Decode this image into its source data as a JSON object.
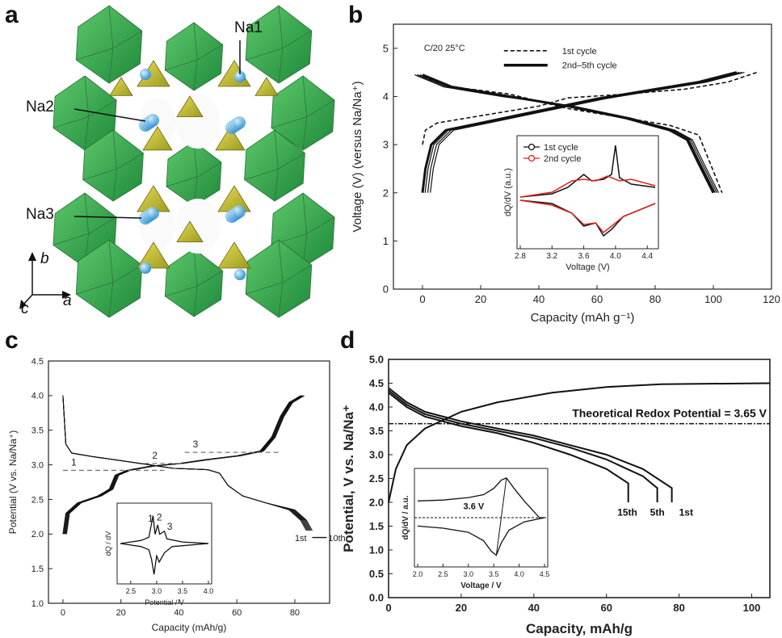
{
  "panels": {
    "a": {
      "label": "a",
      "structure_labels": [
        "Na1",
        "Na2",
        "Na3"
      ],
      "axes_labels": {
        "b": "b",
        "c": "c",
        "a": "a"
      }
    },
    "b": {
      "label": "b"
    },
    "c": {
      "label": "c"
    },
    "d": {
      "label": "d"
    }
  },
  "chart_data": [
    {
      "id": "b",
      "type": "line",
      "xlabel": "Capacity (mAh g⁻¹)",
      "ylabel": "Voltage (V) (versus Na/Na⁺)",
      "xlim": [
        -10,
        120
      ],
      "ylim": [
        0,
        5.5
      ],
      "xticks": [
        0,
        20,
        40,
        60,
        80,
        100,
        120
      ],
      "yticks": [
        0,
        1,
        2,
        3,
        4,
        5
      ],
      "annotation": "C/20 25°C",
      "legend": [
        {
          "name": "1st cycle",
          "style": "dashed"
        },
        {
          "name": "2nd–5th cycle",
          "style": "solid-thick"
        }
      ],
      "series": [
        {
          "name": "1st cycle",
          "charge": [
            [
              0,
              3.0
            ],
            [
              1,
              3.3
            ],
            [
              5,
              3.45
            ],
            [
              20,
              3.6
            ],
            [
              40,
              3.8
            ],
            [
              50,
              3.97
            ],
            [
              70,
              4.05
            ],
            [
              90,
              4.15
            ],
            [
              105,
              4.3
            ],
            [
              115,
              4.5
            ]
          ],
          "discharge": [
            [
              0,
              4.4
            ],
            [
              10,
              4.2
            ],
            [
              30,
              4.05
            ],
            [
              50,
              3.75
            ],
            [
              70,
              3.55
            ],
            [
              85,
              3.4
            ],
            [
              95,
              3.2
            ],
            [
              99,
              2.6
            ],
            [
              103,
              2.0
            ]
          ]
        },
        {
          "name": "2nd–5th cycle",
          "charge": [
            [
              0,
              2.0
            ],
            [
              1,
              2.5
            ],
            [
              3,
              3.0
            ],
            [
              8,
              3.3
            ],
            [
              20,
              3.45
            ],
            [
              40,
              3.7
            ],
            [
              60,
              3.95
            ],
            [
              80,
              4.15
            ],
            [
              95,
              4.3
            ],
            [
              108,
              4.5
            ]
          ],
          "discharge": [
            [
              0,
              4.45
            ],
            [
              10,
              4.2
            ],
            [
              30,
              4.0
            ],
            [
              50,
              3.8
            ],
            [
              70,
              3.55
            ],
            [
              85,
              3.3
            ],
            [
              91,
              3.1
            ],
            [
              95,
              2.6
            ],
            [
              100,
              2.0
            ]
          ]
        }
      ],
      "inset": {
        "type": "line",
        "xlabel": "Voltage (V)",
        "ylabel": "dQ/dV (a.u.)",
        "xlim": [
          2.8,
          4.5
        ],
        "xticks": [
          2.8,
          3.2,
          3.6,
          4.0,
          4.4
        ],
        "legend": [
          "1st cycle",
          "2nd cycle"
        ],
        "series": [
          {
            "name": "1st cycle",
            "color": "#111111",
            "upper": [
              [
                2.8,
                0.0
              ],
              [
                3.2,
                0.1
              ],
              [
                3.4,
                0.3
              ],
              [
                3.6,
                0.7
              ],
              [
                3.7,
                0.5
              ],
              [
                3.85,
                0.55
              ],
              [
                3.95,
                0.7
              ],
              [
                4.0,
                1.6
              ],
              [
                4.05,
                0.6
              ],
              [
                4.2,
                0.4
              ],
              [
                4.5,
                0.3
              ]
            ],
            "lower": [
              [
                2.8,
                -0.1
              ],
              [
                3.2,
                -0.2
              ],
              [
                3.45,
                -0.5
              ],
              [
                3.6,
                -0.9
              ],
              [
                3.75,
                -0.8
              ],
              [
                3.85,
                -1.2
              ],
              [
                3.95,
                -1.0
              ],
              [
                4.1,
                -0.6
              ],
              [
                4.5,
                -0.2
              ]
            ]
          },
          {
            "name": "2nd cycle",
            "color": "#e02020",
            "upper": [
              [
                2.8,
                0.0
              ],
              [
                3.2,
                0.15
              ],
              [
                3.45,
                0.5
              ],
              [
                3.6,
                0.55
              ],
              [
                3.75,
                0.5
              ],
              [
                3.9,
                0.65
              ],
              [
                4.05,
                0.5
              ],
              [
                4.2,
                0.55
              ],
              [
                4.5,
                0.35
              ]
            ],
            "lower": [
              [
                2.8,
                -0.1
              ],
              [
                3.2,
                -0.25
              ],
              [
                3.45,
                -0.5
              ],
              [
                3.6,
                -0.85
              ],
              [
                3.75,
                -0.8
              ],
              [
                3.85,
                -1.1
              ],
              [
                3.95,
                -0.9
              ],
              [
                4.1,
                -0.6
              ],
              [
                4.5,
                -0.2
              ]
            ]
          }
        ]
      }
    },
    {
      "id": "c",
      "type": "line",
      "xlabel": "Capacity (mAh/g)",
      "ylabel": "Potential (V vs. Na/Na⁺)",
      "xlim": [
        -5,
        92
      ],
      "ylim": [
        1.0,
        4.5
      ],
      "xticks": [
        0,
        20,
        40,
        60,
        80
      ],
      "yticks": [
        1.0,
        1.5,
        2.0,
        2.5,
        3.0,
        3.5,
        4.0,
        4.5
      ],
      "annotations": [
        "1",
        "2",
        "3",
        "1st",
        "10th"
      ],
      "series": [
        {
          "name": "charge",
          "points": [
            [
              0,
              2.0
            ],
            [
              1,
              2.3
            ],
            [
              5,
              2.45
            ],
            [
              12,
              2.55
            ],
            [
              16,
              2.65
            ],
            [
              18,
              2.85
            ],
            [
              22,
              2.92
            ],
            [
              30,
              2.98
            ],
            [
              40,
              3.02
            ],
            [
              50,
              3.08
            ],
            [
              60,
              3.13
            ],
            [
              68,
              3.2
            ],
            [
              72,
              3.4
            ],
            [
              75,
              3.7
            ],
            [
              78,
              3.9
            ],
            [
              82,
              4.0
            ]
          ]
        },
        {
          "name": "discharge",
          "points": [
            [
              0,
              4.0
            ],
            [
              1,
              3.3
            ],
            [
              3,
              3.17
            ],
            [
              10,
              3.12
            ],
            [
              20,
              3.06
            ],
            [
              30,
              3.0
            ],
            [
              38,
              2.95
            ],
            [
              50,
              2.93
            ],
            [
              54,
              2.88
            ],
            [
              57,
              2.7
            ],
            [
              62,
              2.55
            ],
            [
              70,
              2.45
            ],
            [
              78,
              2.35
            ],
            [
              82,
              2.2
            ],
            [
              84,
              2.05
            ]
          ]
        }
      ],
      "reference_lines": [
        {
          "label": "1",
          "y": 2.92,
          "x": [
            0,
            35
          ]
        },
        {
          "label": "2",
          "y": 3.02,
          "x": [
            28,
            42
          ]
        },
        {
          "label": "3",
          "y": 3.18,
          "x": [
            42,
            75
          ]
        }
      ],
      "inset": {
        "type": "line",
        "xlabel": "Potential / V",
        "ylabel": "dQ / dV",
        "xlim": [
          2.3,
          4.0
        ],
        "xticks": [
          2.5,
          3.0,
          3.5,
          4.0
        ],
        "annotations": [
          "1",
          "2",
          "3"
        ],
        "series": [
          {
            "name": "dQ/dV",
            "upper": [
              [
                2.3,
                0.0
              ],
              [
                2.5,
                0.05
              ],
              [
                2.7,
                0.1
              ],
              [
                2.85,
                0.2
              ],
              [
                2.93,
                0.9
              ],
              [
                2.97,
                0.3
              ],
              [
                3.02,
                0.6
              ],
              [
                3.06,
                0.3
              ],
              [
                3.15,
                0.4
              ],
              [
                3.2,
                0.15
              ],
              [
                3.5,
                0.05
              ],
              [
                4.0,
                0.0
              ]
            ],
            "lower": [
              [
                2.3,
                0.0
              ],
              [
                2.5,
                -0.05
              ],
              [
                2.7,
                -0.1
              ],
              [
                2.85,
                -0.2
              ],
              [
                2.9,
                -0.5
              ],
              [
                2.95,
                -1.0
              ],
              [
                3.0,
                -0.4
              ],
              [
                3.05,
                -0.6
              ],
              [
                3.15,
                -0.3
              ],
              [
                3.3,
                -0.1
              ],
              [
                4.0,
                0.0
              ]
            ]
          }
        ]
      }
    },
    {
      "id": "d",
      "type": "line",
      "xlabel": "Capacity, mAh/g",
      "ylabel": "Potential, V vs. Na/Na⁺",
      "xlim": [
        0,
        105
      ],
      "ylim": [
        0.0,
        5.0
      ],
      "xticks": [
        0,
        20,
        40,
        60,
        80,
        100
      ],
      "yticks": [
        0.0,
        0.5,
        1.0,
        1.5,
        2.0,
        2.5,
        3.0,
        3.5,
        4.0,
        4.5,
        5.0
      ],
      "reference_line": {
        "label": "Theoretical Redox Potential = 3.65 V",
        "y": 3.65
      },
      "annotations": [
        "15th",
        "5th",
        "1st"
      ],
      "series": [
        {
          "name": "charge",
          "points": [
            [
              0,
              2.0
            ],
            [
              2,
              2.7
            ],
            [
              5,
              3.2
            ],
            [
              10,
              3.55
            ],
            [
              20,
              3.9
            ],
            [
              30,
              4.1
            ],
            [
              45,
              4.3
            ],
            [
              60,
              4.42
            ],
            [
              75,
              4.48
            ],
            [
              105,
              4.5
            ]
          ]
        },
        {
          "name": "15th",
          "points": [
            [
              0,
              4.3
            ],
            [
              5,
              4.0
            ],
            [
              10,
              3.8
            ],
            [
              20,
              3.6
            ],
            [
              30,
              3.45
            ],
            [
              40,
              3.25
            ],
            [
              50,
              3.0
            ],
            [
              60,
              2.7
            ],
            [
              66,
              2.4
            ],
            [
              66,
              2.0
            ]
          ]
        },
        {
          "name": "5th",
          "points": [
            [
              0,
              4.35
            ],
            [
              5,
              4.05
            ],
            [
              10,
              3.85
            ],
            [
              20,
              3.65
            ],
            [
              30,
              3.5
            ],
            [
              40,
              3.35
            ],
            [
              50,
              3.15
            ],
            [
              60,
              2.9
            ],
            [
              70,
              2.55
            ],
            [
              74,
              2.3
            ],
            [
              74,
              2.0
            ]
          ]
        },
        {
          "name": "1st",
          "points": [
            [
              0,
              4.4
            ],
            [
              5,
              4.1
            ],
            [
              10,
              3.9
            ],
            [
              20,
              3.7
            ],
            [
              30,
              3.55
            ],
            [
              40,
              3.4
            ],
            [
              50,
              3.2
            ],
            [
              60,
              3.0
            ],
            [
              70,
              2.7
            ],
            [
              78,
              2.3
            ],
            [
              78,
              2.0
            ]
          ]
        }
      ],
      "inset": {
        "type": "line",
        "xlabel": "Voltage / V",
        "ylabel": "dQ/dV / a.u.",
        "xlim": [
          2.0,
          4.5
        ],
        "xticks": [
          2.0,
          2.5,
          3.0,
          3.5,
          4.0,
          4.5
        ],
        "annotation": "3.6 V",
        "series": [
          {
            "name": "charge",
            "points": [
              [
                2.0,
                0.4
              ],
              [
                2.5,
                0.42
              ],
              [
                3.0,
                0.48
              ],
              [
                3.3,
                0.55
              ],
              [
                3.5,
                0.7
              ],
              [
                3.65,
                0.9
              ],
              [
                3.75,
                0.95
              ],
              [
                3.9,
                0.7
              ],
              [
                4.1,
                0.4
              ],
              [
                4.4,
                0.0
              ],
              [
                4.5,
                0.0
              ]
            ]
          },
          {
            "name": "discharge",
            "points": [
              [
                2.0,
                -0.2
              ],
              [
                2.5,
                -0.25
              ],
              [
                3.0,
                -0.35
              ],
              [
                3.3,
                -0.55
              ],
              [
                3.45,
                -0.8
              ],
              [
                3.55,
                -0.9
              ],
              [
                3.65,
                -0.6
              ],
              [
                3.8,
                -0.3
              ],
              [
                4.1,
                -0.1
              ],
              [
                4.5,
                0.0
              ]
            ]
          }
        ]
      }
    }
  ]
}
